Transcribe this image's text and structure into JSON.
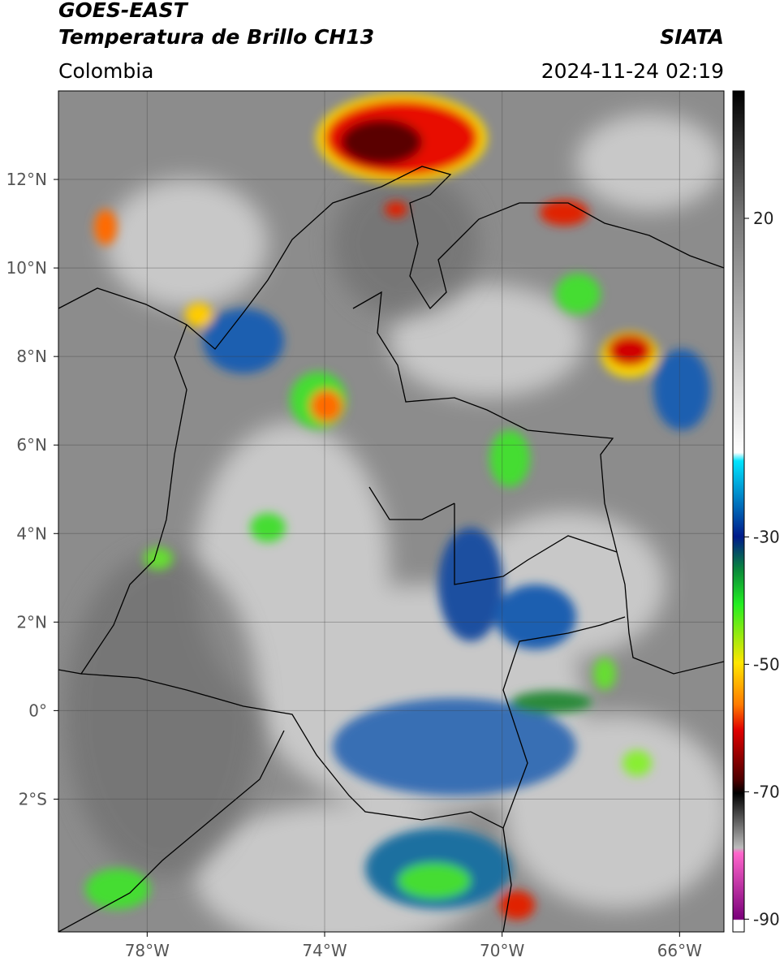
{
  "chart_data": {
    "type": "map",
    "title": "GOES-EAST",
    "subtitle": "Temperatura de Brillo CH13",
    "region": "Colombia",
    "source": "SIATA",
    "datetime": "2024-11-24 02:19",
    "xlim": [
      -80,
      -65
    ],
    "ylim": [
      -5,
      14
    ],
    "xticks": [
      {
        "value": -78,
        "label": "78°W"
      },
      {
        "value": -74,
        "label": "74°W"
      },
      {
        "value": -70,
        "label": "70°W"
      },
      {
        "value": -66,
        "label": "66°W"
      }
    ],
    "yticks": [
      {
        "value": 12,
        "label": "12°N"
      },
      {
        "value": 10,
        "label": "10°N"
      },
      {
        "value": 8,
        "label": "8°N"
      },
      {
        "value": 6,
        "label": "6°N"
      },
      {
        "value": 4,
        "label": "4°N"
      },
      {
        "value": 2,
        "label": "2°N"
      },
      {
        "value": 0,
        "label": "0°"
      },
      {
        "value": -2,
        "label": "2°S"
      }
    ],
    "grid": true,
    "colorbar": {
      "lim": [
        -92,
        40
      ],
      "ticks": [
        20,
        -30,
        -50,
        -70,
        -90
      ]
    }
  }
}
